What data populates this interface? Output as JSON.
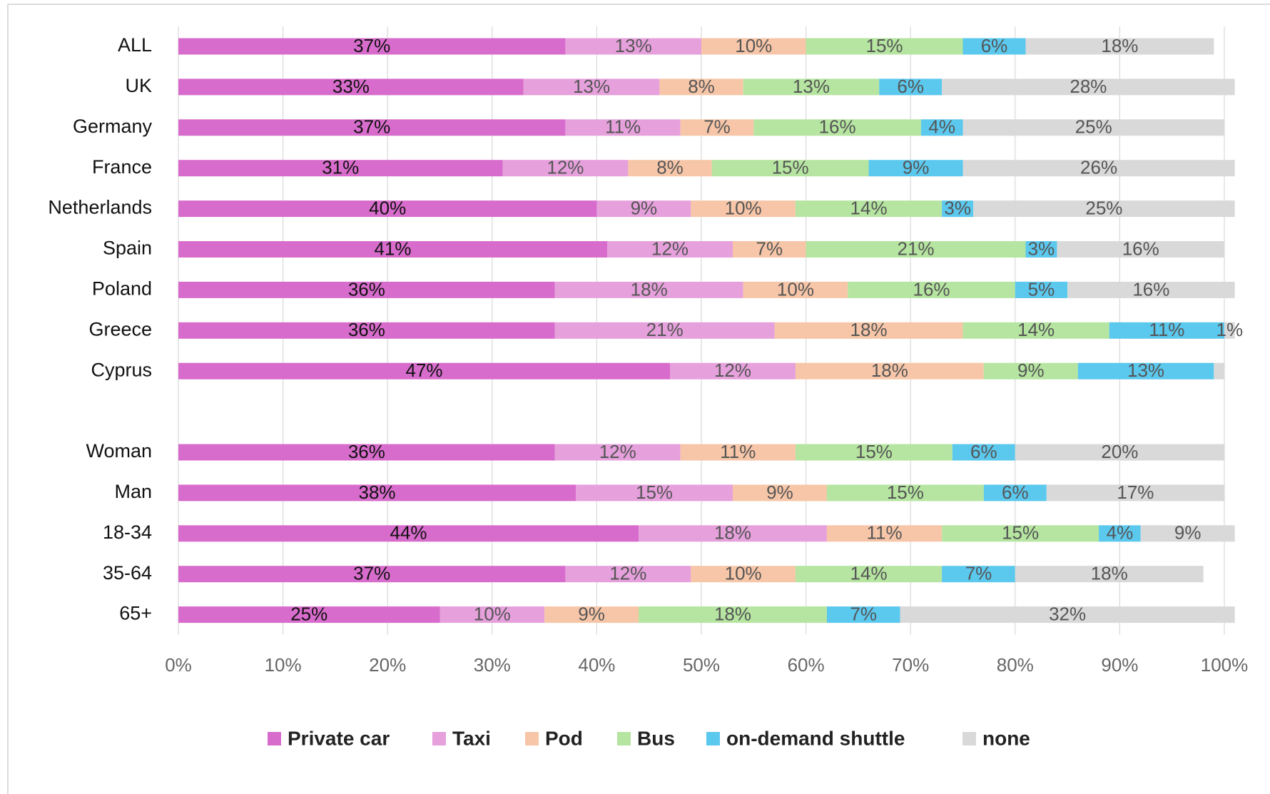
{
  "chart_data": {
    "type": "stacked_barh",
    "categories": [
      "ALL",
      "UK",
      "Germany",
      "France",
      "Netherlands",
      "Spain",
      "Poland",
      "Greece",
      "Cyprus",
      null,
      "Woman",
      "Man",
      "18-34",
      "35-64",
      "65+"
    ],
    "series": [
      {
        "name": "Private car",
        "color": "#d86ccc",
        "values": [
          37,
          33,
          37,
          31,
          40,
          41,
          36,
          36,
          47,
          null,
          36,
          38,
          44,
          37,
          25
        ],
        "value_labels": [
          "37%",
          "33%",
          "37%",
          "31%",
          "40%",
          "41%",
          "36%",
          "36%",
          "47%",
          null,
          "36%",
          "38%",
          "44%",
          "37%",
          "25%"
        ]
      },
      {
        "name": "Taxi",
        "color": "#e6a0dc",
        "values": [
          13,
          13,
          11,
          12,
          9,
          12,
          18,
          21,
          12,
          null,
          12,
          15,
          18,
          12,
          10
        ],
        "value_labels": [
          "13%",
          "13%",
          "11%",
          "12%",
          "9%",
          "12%",
          "18%",
          "21%",
          "12%",
          null,
          "12%",
          "15%",
          "18%",
          "12%",
          "10%"
        ]
      },
      {
        "name": "Pod",
        "color": "#f7c6a8",
        "values": [
          10,
          8,
          7,
          8,
          10,
          7,
          10,
          18,
          18,
          null,
          11,
          9,
          11,
          10,
          9
        ],
        "value_labels": [
          "10%",
          "8%",
          "7%",
          "8%",
          "10%",
          "7%",
          "10%",
          "18%",
          "18%",
          null,
          "11%",
          "9%",
          "11%",
          "10%",
          "9%"
        ]
      },
      {
        "name": "Bus",
        "color": "#b5e5a0",
        "values": [
          15,
          13,
          16,
          15,
          14,
          21,
          16,
          14,
          9,
          null,
          15,
          15,
          15,
          14,
          18
        ],
        "value_labels": [
          "15%",
          "13%",
          "16%",
          "15%",
          "14%",
          "21%",
          "16%",
          "14%",
          "9%",
          null,
          "15%",
          "15%",
          "15%",
          "14%",
          "18%"
        ]
      },
      {
        "name": "on-demand shuttle",
        "color": "#5bc8ee",
        "values": [
          6,
          6,
          4,
          9,
          3,
          3,
          5,
          11,
          13,
          null,
          6,
          6,
          4,
          7,
          7
        ],
        "value_labels": [
          "6%",
          "6%",
          "4%",
          "9%",
          "3%",
          "3%",
          "5%",
          "11%",
          "13%",
          null,
          "6%",
          "6%",
          "4%",
          "7%",
          "7%"
        ]
      },
      {
        "name": "none",
        "color": "#d9d9d9",
        "values": [
          18,
          28,
          25,
          26,
          25,
          16,
          16,
          1,
          1,
          null,
          20,
          17,
          9,
          18,
          32
        ],
        "value_labels": [
          "18%",
          "28%",
          "25%",
          "26%",
          "25%",
          "16%",
          "16%",
          "1%",
          null,
          null,
          "20%",
          "17%",
          "9%",
          "18%",
          "32%"
        ]
      }
    ],
    "xlim": [
      0,
      100
    ],
    "xticks": [
      {
        "value": 0,
        "label": "0%"
      },
      {
        "value": 10,
        "label": "10%"
      },
      {
        "value": 20,
        "label": "20%"
      },
      {
        "value": 30,
        "label": "30%"
      },
      {
        "value": 40,
        "label": "40%"
      },
      {
        "value": 50,
        "label": "50%"
      },
      {
        "value": 60,
        "label": "60%"
      },
      {
        "value": 70,
        "label": "70%"
      },
      {
        "value": 80,
        "label": "80%"
      },
      {
        "value": 90,
        "label": "90%"
      },
      {
        "value": 100,
        "label": "100%"
      }
    ],
    "grid": true,
    "legend": "bottom"
  }
}
